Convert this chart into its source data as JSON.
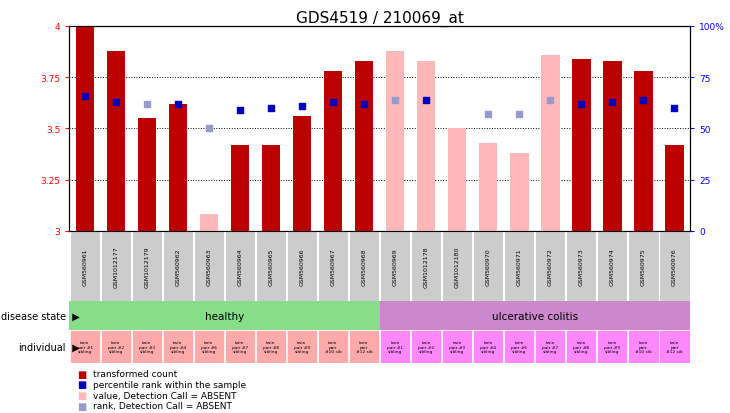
{
  "title": "GDS4519 / 210069_at",
  "samples": [
    "GSM560961",
    "GSM1012177",
    "GSM1012179",
    "GSM560962",
    "GSM560963",
    "GSM560964",
    "GSM560965",
    "GSM560966",
    "GSM560967",
    "GSM560968",
    "GSM560969",
    "GSM1012178",
    "GSM1012180",
    "GSM560970",
    "GSM560971",
    "GSM560972",
    "GSM560973",
    "GSM560974",
    "GSM560975",
    "GSM560976"
  ],
  "transformed_count": [
    4.0,
    3.88,
    3.55,
    3.62,
    null,
    3.42,
    3.42,
    3.56,
    3.78,
    3.83,
    null,
    null,
    null,
    null,
    null,
    null,
    3.84,
    3.83,
    3.78,
    3.42
  ],
  "absent_value": [
    null,
    null,
    null,
    null,
    3.08,
    null,
    null,
    null,
    null,
    null,
    3.88,
    3.83,
    3.5,
    3.43,
    3.38,
    3.86,
    null,
    null,
    null,
    null
  ],
  "percentile_rank": [
    66,
    63,
    null,
    62,
    null,
    59,
    60,
    61,
    63,
    62,
    null,
    64,
    null,
    null,
    null,
    null,
    62,
    63,
    64,
    60
  ],
  "absent_rank": [
    null,
    null,
    62,
    null,
    50,
    null,
    null,
    null,
    null,
    null,
    64,
    null,
    null,
    57,
    57,
    64,
    null,
    null,
    null,
    null
  ],
  "individual": [
    "twin\npair #1\nsibling",
    "twin\npair #2\nsibling",
    "twin\npair #3\nsibling",
    "twin\npair #4\nsibling",
    "twin\npair #6\nsibling",
    "twin\npair #7\nsibling",
    "twin\npair #8\nsibling",
    "twin\npair #9\nsibling",
    "twin\npair\n#10 sib",
    "twin\npair\n#12 sib",
    "twin\npair #1\nsibling",
    "twin\npair #2\nsibling",
    "twin\npair #3\nsibling",
    "twin\npair #4\nsibling",
    "twin\npair #6\nsibling",
    "twin\npair #7\nsibling",
    "twin\npair #8\nsibling",
    "twin\npair #9\nsibling",
    "twin\npair\n#10 sib",
    "twin\npair\n#12 sib"
  ],
  "ylim_left": [
    3.0,
    4.0
  ],
  "ylim_right": [
    0,
    100
  ],
  "yticks_left": [
    3.0,
    3.25,
    3.5,
    3.75,
    4.0
  ],
  "yticks_right": [
    0,
    25,
    50,
    75,
    100
  ],
  "ytick_labels_left": [
    "3",
    "3.25",
    "3.5",
    "3.75",
    "4"
  ],
  "ytick_labels_right": [
    "0",
    "25",
    "50",
    "75",
    "100%"
  ],
  "bar_color": "#bb0000",
  "absent_bar_color": "#ffb8b8",
  "rank_color": "#0000bb",
  "absent_rank_color": "#9999cc",
  "healthy_color": "#88dd88",
  "uc_color": "#cc88cc",
  "individual_color_healthy": "#ffaaaa",
  "individual_color_uc": "#ff88ff",
  "sample_bg_color": "#cccccc",
  "bg_color": "#ffffff",
  "title_fontsize": 11,
  "tick_fontsize": 6.5,
  "bar_width": 0.6,
  "rank_marker_size": 18,
  "n_healthy": 10,
  "n_total": 20
}
